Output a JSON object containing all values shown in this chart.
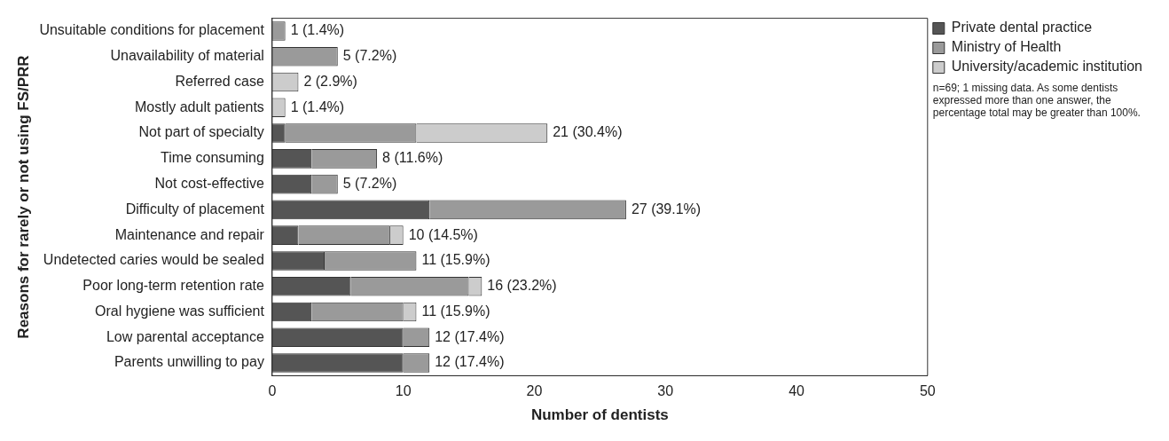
{
  "chart_data": {
    "type": "bar",
    "orientation": "horizontal",
    "stacked": true,
    "categories": [
      "Unsuitable conditions for placement",
      "Unavailability of material",
      "Referred case",
      "Mostly adult patients",
      "Not part of specialty",
      "Time consuming",
      "Not cost-effective",
      "Difficulty of placement",
      "Maintenance and repair",
      "Undetected caries would be sealed",
      "Poor long-term retention rate",
      "Oral hygiene was sufficient",
      "Low parental acceptance",
      "Parents unwilling to pay"
    ],
    "series": [
      {
        "name": "Private dental practice",
        "color": "#555555",
        "values": [
          0,
          0,
          0,
          0,
          1,
          3,
          3,
          12,
          2,
          4,
          6,
          3,
          10,
          10
        ]
      },
      {
        "name": "Ministry of Health",
        "color": "#9a9a9a",
        "values": [
          1,
          5,
          0,
          0,
          10,
          5,
          2,
          15,
          7,
          7,
          9,
          7,
          2,
          2
        ]
      },
      {
        "name": "University/academic institution",
        "color": "#cccccc",
        "values": [
          0,
          0,
          2,
          1,
          10,
          0,
          0,
          0,
          1,
          0,
          1,
          1,
          0,
          0
        ]
      }
    ],
    "totals": [
      "1 (1.4%)",
      "5 (7.2%)",
      "2 (2.9%)",
      "1 (1.4%)",
      "21 (30.4%)",
      "8 (11.6%)",
      "5 (7.2%)",
      "27 (39.1%)",
      "10 (14.5%)",
      "11 (15.9%)",
      "16 (23.2%)",
      "11 (15.9%)",
      "12 (17.4%)",
      "12 (17.4%)"
    ],
    "xlim": [
      0,
      50
    ],
    "xticks": [
      0,
      10,
      20,
      30,
      40,
      50
    ],
    "xlabel": "Number of dentists",
    "ylabel": "Reasons for rarely or not using FS/PRR",
    "grid": false,
    "legend": "top right",
    "annotations": [
      "n=69; 1 missing data. As some dentists expressed more than one answer, the percentage total may be greater than 100%."
    ]
  }
}
